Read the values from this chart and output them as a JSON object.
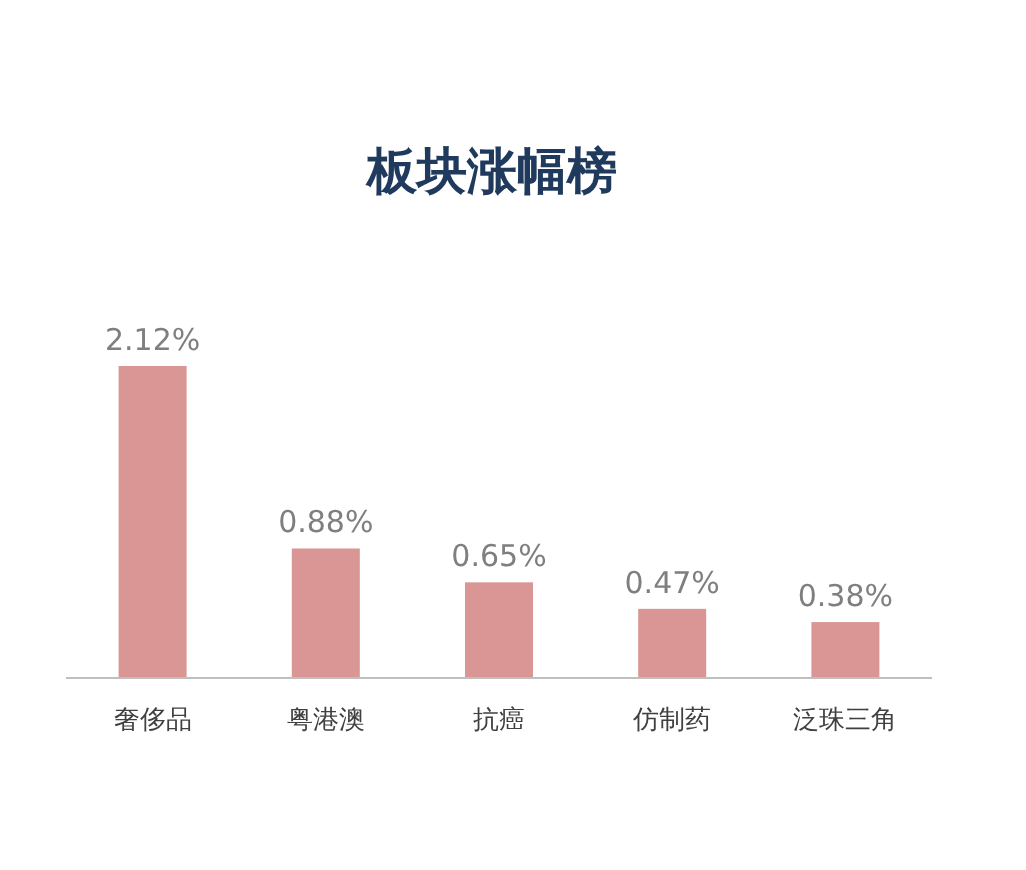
{
  "chart_data": {
    "type": "bar",
    "title": "板块涨幅榜",
    "categories": [
      "奢侈品",
      "粤港澳",
      "抗癌",
      "仿制药",
      "泛珠三角"
    ],
    "values": [
      2.12,
      0.88,
      0.65,
      0.47,
      0.38
    ],
    "value_labels": [
      "2.12%",
      "0.88%",
      "0.65%",
      "0.47%",
      "0.38%"
    ],
    "color": "#d99694"
  }
}
